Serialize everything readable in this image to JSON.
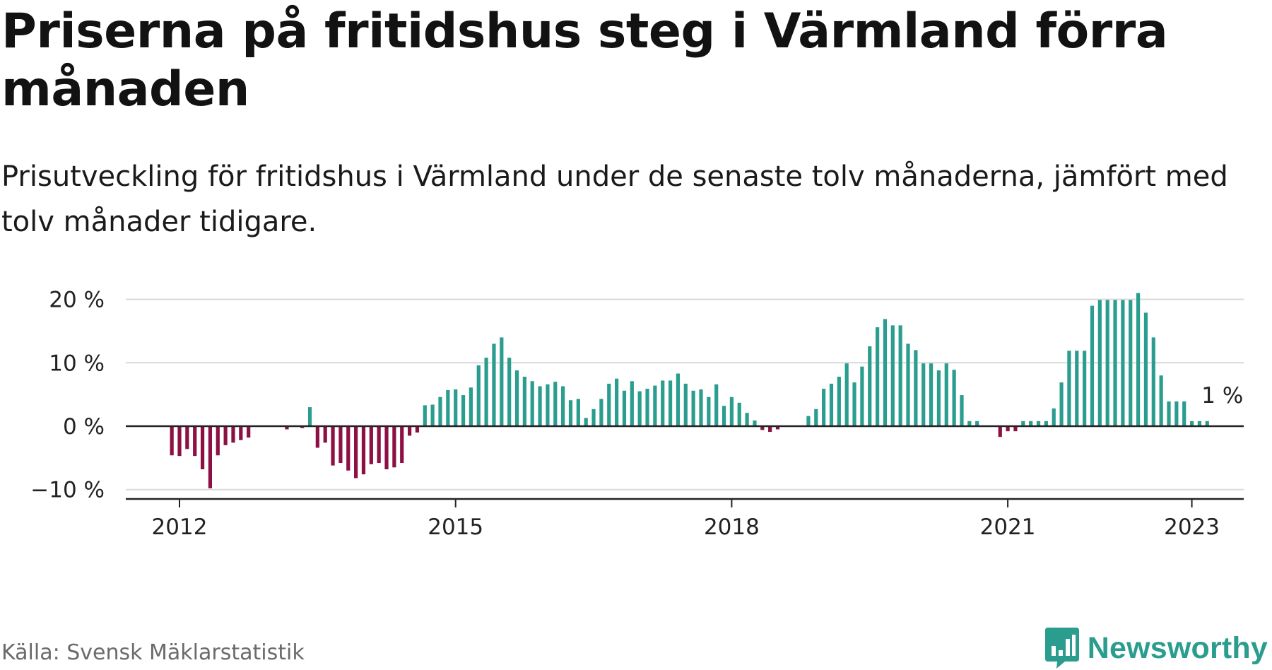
{
  "header": {
    "title": "Priserna på fritidshus steg i Värmland förra månaden",
    "subtitle": "Prisutveckling för fritidshus i Värmland under de senaste tolv månaderna, jämfört med tolv månader tidigare."
  },
  "footer": {
    "source": "Källa: Svensk Mäklarstatistik",
    "brand": "Newsworthy"
  },
  "colors": {
    "positive": "#2a9d8f",
    "negative": "#8c1043",
    "axis": "#222222",
    "grid": "#d9d9d9",
    "brand": "#2a9d8f"
  },
  "icons": {
    "brand_logo": "bar-chart-speech-bubble-icon"
  },
  "chart_data": {
    "type": "bar",
    "y_unit": "%",
    "ylim": [
      -11,
      21
    ],
    "y_ticks": [
      {
        "value": 20,
        "label": "20 %"
      },
      {
        "value": 10,
        "label": "10 %"
      },
      {
        "value": 0,
        "label": "0 %"
      },
      {
        "value": -10,
        "label": "−10 %"
      }
    ],
    "x_ticks": [
      {
        "date": "2012-01",
        "label": "2012"
      },
      {
        "date": "2015-01",
        "label": "2015"
      },
      {
        "date": "2018-01",
        "label": "2018"
      },
      {
        "date": "2021-01",
        "label": "2021"
      },
      {
        "date": "2023-01",
        "label": "2023"
      }
    ],
    "x_range": [
      "2011-06",
      "2023-07"
    ],
    "grid": true,
    "last_value_label": "1 %",
    "series": [
      {
        "points": [
          [
            "2011-06",
            0
          ],
          [
            "2011-07",
            0
          ],
          [
            "2011-08",
            0
          ],
          [
            "2011-09",
            0
          ],
          [
            "2011-10",
            0
          ],
          [
            "2011-11",
            0
          ],
          [
            "2011-12",
            -4.6
          ],
          [
            "2012-01",
            -4.7
          ],
          [
            "2012-02",
            -3.6
          ],
          [
            "2012-03",
            -4.7
          ],
          [
            "2012-04",
            -6.8
          ],
          [
            "2012-05",
            -9.8
          ],
          [
            "2012-06",
            -4.6
          ],
          [
            "2012-07",
            -3.0
          ],
          [
            "2012-08",
            -2.6
          ],
          [
            "2012-09",
            -2.2
          ],
          [
            "2012-10",
            -1.8
          ],
          [
            "2012-11",
            0
          ],
          [
            "2012-12",
            0
          ],
          [
            "2013-01",
            0
          ],
          [
            "2013-02",
            0
          ],
          [
            "2013-03",
            -0.5
          ],
          [
            "2013-04",
            0
          ],
          [
            "2013-05",
            -0.3
          ],
          [
            "2013-06",
            3.0
          ],
          [
            "2013-07",
            -3.4
          ],
          [
            "2013-08",
            -2.6
          ],
          [
            "2013-09",
            -6.2
          ],
          [
            "2013-10",
            -5.8
          ],
          [
            "2013-11",
            -7.0
          ],
          [
            "2013-12",
            -8.2
          ],
          [
            "2014-01",
            -7.6
          ],
          [
            "2014-02",
            -6.0
          ],
          [
            "2014-03",
            -5.8
          ],
          [
            "2014-04",
            -6.8
          ],
          [
            "2014-05",
            -6.5
          ],
          [
            "2014-06",
            -5.8
          ],
          [
            "2014-07",
            -1.5
          ],
          [
            "2014-08",
            -1.0
          ],
          [
            "2014-09",
            3.3
          ],
          [
            "2014-10",
            3.4
          ],
          [
            "2014-11",
            4.6
          ],
          [
            "2014-12",
            5.7
          ],
          [
            "2015-01",
            5.8
          ],
          [
            "2015-02",
            4.9
          ],
          [
            "2015-03",
            6.1
          ],
          [
            "2015-04",
            9.6
          ],
          [
            "2015-05",
            10.8
          ],
          [
            "2015-06",
            13.0
          ],
          [
            "2015-07",
            14.0
          ],
          [
            "2015-08",
            10.8
          ],
          [
            "2015-09",
            8.8
          ],
          [
            "2015-10",
            7.8
          ],
          [
            "2015-11",
            7.1
          ],
          [
            "2015-12",
            6.3
          ],
          [
            "2016-01",
            6.6
          ],
          [
            "2016-02",
            7.0
          ],
          [
            "2016-03",
            6.3
          ],
          [
            "2016-04",
            4.1
          ],
          [
            "2016-05",
            4.3
          ],
          [
            "2016-06",
            1.3
          ],
          [
            "2016-07",
            2.7
          ],
          [
            "2016-08",
            4.3
          ],
          [
            "2016-09",
            6.7
          ],
          [
            "2016-10",
            7.5
          ],
          [
            "2016-11",
            5.6
          ],
          [
            "2016-12",
            7.1
          ],
          [
            "2017-01",
            5.5
          ],
          [
            "2017-02",
            5.9
          ],
          [
            "2017-03",
            6.4
          ],
          [
            "2017-04",
            7.2
          ],
          [
            "2017-05",
            7.2
          ],
          [
            "2017-06",
            8.3
          ],
          [
            "2017-07",
            6.7
          ],
          [
            "2017-08",
            5.6
          ],
          [
            "2017-09",
            5.8
          ],
          [
            "2017-10",
            4.6
          ],
          [
            "2017-11",
            6.6
          ],
          [
            "2017-12",
            3.2
          ],
          [
            "2018-01",
            4.6
          ],
          [
            "2018-02",
            3.7
          ],
          [
            "2018-03",
            2.1
          ],
          [
            "2018-04",
            0.9
          ],
          [
            "2018-05",
            -0.6
          ],
          [
            "2018-06",
            -0.9
          ],
          [
            "2018-07",
            -0.5
          ],
          [
            "2018-08",
            0
          ],
          [
            "2018-09",
            0
          ],
          [
            "2018-10",
            0
          ],
          [
            "2018-11",
            1.6
          ],
          [
            "2018-12",
            2.7
          ],
          [
            "2019-01",
            5.9
          ],
          [
            "2019-02",
            6.7
          ],
          [
            "2019-03",
            7.8
          ],
          [
            "2019-04",
            9.9
          ],
          [
            "2019-05",
            6.9
          ],
          [
            "2019-06",
            9.4
          ],
          [
            "2019-07",
            12.6
          ],
          [
            "2019-08",
            15.6
          ],
          [
            "2019-09",
            16.9
          ],
          [
            "2019-10",
            15.9
          ],
          [
            "2019-11",
            15.9
          ],
          [
            "2019-12",
            13.0
          ],
          [
            "2020-01",
            12.0
          ],
          [
            "2020-02",
            9.9
          ],
          [
            "2020-03",
            9.9
          ],
          [
            "2020-04",
            8.8
          ],
          [
            "2020-05",
            9.9
          ],
          [
            "2020-06",
            8.9
          ],
          [
            "2020-07",
            4.9
          ],
          [
            "2020-08",
            0.8
          ],
          [
            "2020-09",
            0.8
          ],
          [
            "2020-10",
            0
          ],
          [
            "2020-11",
            0
          ],
          [
            "2020-12",
            -1.7
          ],
          [
            "2021-01",
            -0.8
          ],
          [
            "2021-02",
            -0.8
          ],
          [
            "2021-03",
            0.8
          ],
          [
            "2021-04",
            0.8
          ],
          [
            "2021-05",
            0.8
          ],
          [
            "2021-06",
            0.8
          ],
          [
            "2021-07",
            2.8
          ],
          [
            "2021-08",
            6.9
          ],
          [
            "2021-09",
            11.9
          ],
          [
            "2021-10",
            11.9
          ],
          [
            "2021-11",
            11.9
          ],
          [
            "2021-12",
            19.0
          ],
          [
            "2022-01",
            19.9
          ],
          [
            "2022-02",
            19.9
          ],
          [
            "2022-03",
            19.9
          ],
          [
            "2022-04",
            19.9
          ],
          [
            "2022-05",
            19.9
          ],
          [
            "2022-06",
            21.0
          ],
          [
            "2022-07",
            17.9
          ],
          [
            "2022-08",
            14.0
          ],
          [
            "2022-09",
            8.0
          ],
          [
            "2022-10",
            3.9
          ],
          [
            "2022-11",
            3.9
          ],
          [
            "2022-12",
            3.9
          ],
          [
            "2023-01",
            0.8
          ],
          [
            "2023-02",
            0.8
          ],
          [
            "2023-03",
            0.8
          ]
        ]
      }
    ]
  }
}
